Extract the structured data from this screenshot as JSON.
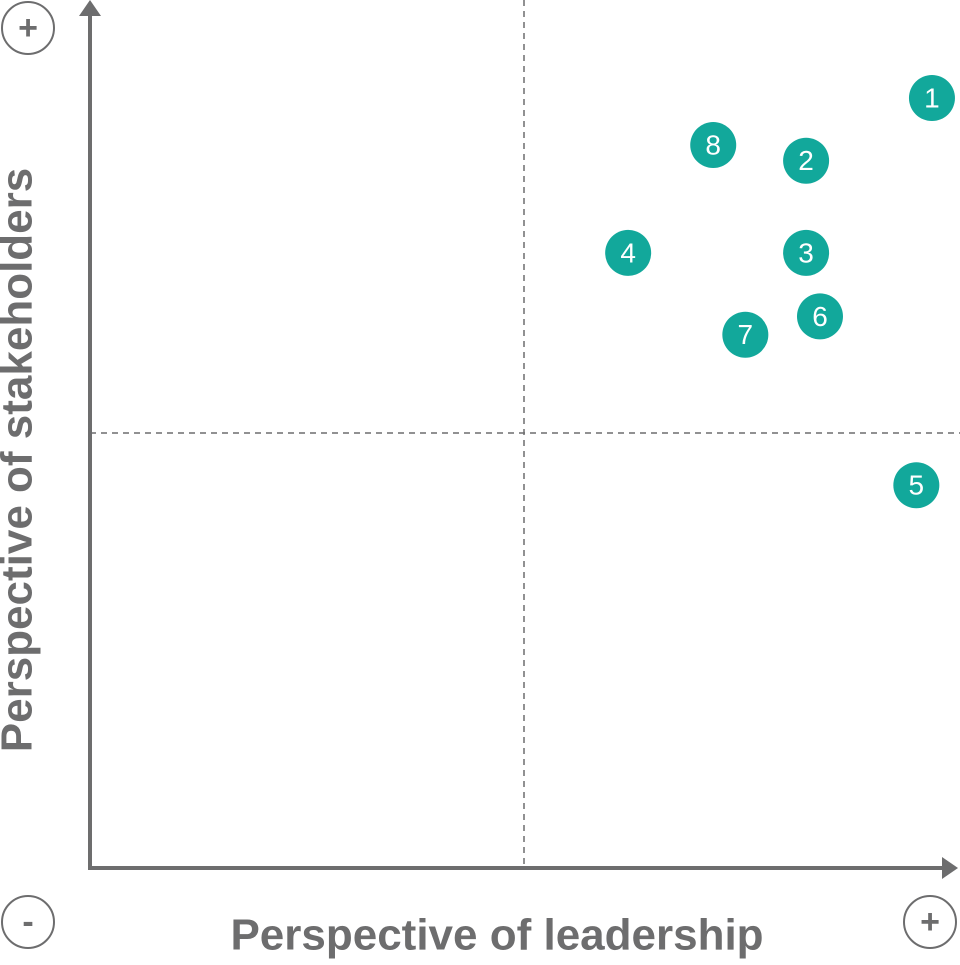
{
  "chart_data": {
    "type": "scatter",
    "xlabel": "Perspective of leadership",
    "ylabel": "Perspective of stakeholders",
    "low_label": "-",
    "high_label": "+",
    "labels": [
      "1",
      "2",
      "3",
      "4",
      "5",
      "6",
      "7",
      "8"
    ],
    "x": [
      9.7,
      8.25,
      8.25,
      6.2,
      9.52,
      8.41,
      7.55,
      7.18
    ],
    "y": [
      8.85,
      8.13,
      7.07,
      7.07,
      4.4,
      6.34,
      6.13,
      8.31
    ],
    "color": "#12a89b",
    "xlim": [
      0,
      10
    ],
    "ylim": [
      0,
      10
    ],
    "quadrant_lines": true
  }
}
